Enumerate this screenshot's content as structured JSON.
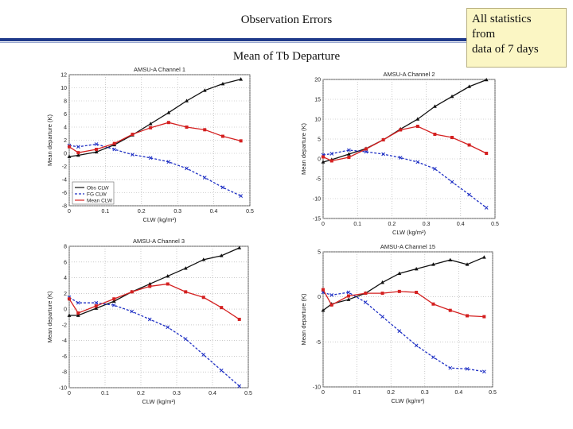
{
  "slide": {
    "title": "Observation Errors",
    "subtitle": "Mean of Tb Departure",
    "note_lines": [
      "All statistics",
      "from",
      "data of 7 days"
    ]
  },
  "chart_data": [
    {
      "type": "line",
      "title": "AMSU-A Channel 1",
      "xlabel": "CLW (kg/m²)",
      "ylabel": "Mean departure (K)",
      "xlim": [
        0,
        0.5
      ],
      "ylim": [
        -8,
        12
      ],
      "xticks": [
        0,
        0.1,
        0.2,
        0.3,
        0.4,
        0.5
      ],
      "xtick_labels": [
        "0",
        "0.1",
        "0.2",
        "0.3",
        "0.4",
        "0.5"
      ],
      "yticks": [
        -8,
        -6,
        -4,
        -2,
        0,
        2,
        4,
        6,
        8,
        10,
        12
      ],
      "legend": [
        "Obs CLW",
        "FG CLW",
        "Mean CLW"
      ],
      "legend_position": "bottom-left",
      "x": [
        0,
        0.025,
        0.075,
        0.125,
        0.175,
        0.225,
        0.275,
        0.325,
        0.375,
        0.425,
        0.475
      ],
      "series": [
        {
          "name": "Obs CLW",
          "color": "#111111",
          "marker": "triangle",
          "values": [
            -0.5,
            -0.3,
            0.2,
            1.3,
            2.8,
            4.5,
            6.2,
            8.0,
            9.6,
            10.6,
            11.3
          ]
        },
        {
          "name": "FG CLW",
          "color": "#1e2fc4",
          "marker": "x",
          "values": [
            1.2,
            1.0,
            1.4,
            0.6,
            -0.2,
            -0.7,
            -1.3,
            -2.3,
            -3.7,
            -5.2,
            -6.5
          ]
        },
        {
          "name": "Mean CLW",
          "color": "#d42020",
          "marker": "square",
          "values": [
            1.0,
            0.1,
            0.6,
            1.5,
            2.9,
            3.9,
            4.7,
            4.0,
            3.6,
            2.6,
            1.9
          ]
        }
      ]
    },
    {
      "type": "line",
      "title": "AMSU-A Channel 2",
      "xlabel": "CLW (kg/m²)",
      "ylabel": "Mean departure (K)",
      "xlim": [
        0,
        0.5
      ],
      "ylim": [
        -15,
        20
      ],
      "xticks": [
        0,
        0.1,
        0.2,
        0.3,
        0.4,
        0.5
      ],
      "xtick_labels": [
        "0",
        "0.1",
        "0.2",
        "0.3",
        "0.4",
        "0.5"
      ],
      "yticks": [
        -15,
        -10,
        -5,
        0,
        5,
        10,
        15,
        20
      ],
      "x": [
        0,
        0.025,
        0.075,
        0.125,
        0.175,
        0.225,
        0.275,
        0.325,
        0.375,
        0.425,
        0.475
      ],
      "series": [
        {
          "name": "Obs CLW",
          "color": "#111111",
          "marker": "triangle",
          "values": [
            -0.8,
            -0.2,
            1.2,
            2.6,
            4.8,
            7.5,
            10.0,
            13.2,
            15.7,
            18.2,
            19.9
          ]
        },
        {
          "name": "FG CLW",
          "color": "#1e2fc4",
          "marker": "x",
          "values": [
            1.0,
            1.3,
            2.2,
            1.8,
            1.2,
            0.3,
            -0.8,
            -2.5,
            -5.8,
            -9.0,
            -12.3
          ]
        },
        {
          "name": "Mean CLW",
          "color": "#d42020",
          "marker": "square",
          "values": [
            0.5,
            -0.5,
            0.4,
            2.5,
            4.8,
            7.3,
            8.2,
            6.2,
            5.4,
            3.5,
            1.4
          ]
        }
      ]
    },
    {
      "type": "line",
      "title": "AMSU-A Channel 3",
      "xlabel": "CLW (kg/m²)",
      "ylabel": "Mean departure (K)",
      "xlim": [
        0,
        0.5
      ],
      "ylim": [
        -10,
        8
      ],
      "xticks": [
        0,
        0.1,
        0.2,
        0.3,
        0.4,
        0.5
      ],
      "xtick_labels": [
        "0",
        "0.1",
        "0.2",
        "0.3",
        "0.4",
        "0.5"
      ],
      "yticks": [
        -10,
        -8,
        -6,
        -4,
        -2,
        0,
        2,
        4,
        6,
        8
      ],
      "x": [
        0,
        0.025,
        0.075,
        0.125,
        0.175,
        0.225,
        0.275,
        0.325,
        0.375,
        0.425,
        0.475
      ],
      "series": [
        {
          "name": "Obs CLW",
          "color": "#111111",
          "marker": "triangle",
          "values": [
            -0.8,
            -0.8,
            0.1,
            1.0,
            2.2,
            3.2,
            4.2,
            5.2,
            6.3,
            6.8,
            7.8
          ]
        },
        {
          "name": "FG CLW",
          "color": "#1e2fc4",
          "marker": "x",
          "values": [
            1.5,
            0.8,
            0.8,
            0.5,
            -0.3,
            -1.3,
            -2.3,
            -3.8,
            -5.8,
            -7.8,
            -9.8
          ]
        },
        {
          "name": "Mean CLW",
          "color": "#d42020",
          "marker": "square",
          "values": [
            1.3,
            -0.5,
            0.4,
            1.3,
            2.2,
            2.9,
            3.2,
            2.2,
            1.5,
            0.2,
            -1.3
          ]
        }
      ]
    },
    {
      "type": "line",
      "title": "AMSU-A Channel 15",
      "xlabel": "CLW (kg/m²)",
      "ylabel": "Mean departure (K)",
      "xlim": [
        0,
        0.5
      ],
      "ylim": [
        -10,
        5
      ],
      "xticks": [
        0,
        0.1,
        0.2,
        0.3,
        0.4,
        0.5
      ],
      "xtick_labels": [
        "0",
        "0.1",
        "0.2",
        "0.3",
        "0.4",
        "0.5"
      ],
      "yticks": [
        -10,
        -5,
        0,
        5
      ],
      "x": [
        0,
        0.025,
        0.075,
        0.125,
        0.175,
        0.225,
        0.275,
        0.325,
        0.375,
        0.425,
        0.475
      ],
      "series": [
        {
          "name": "Obs CLW",
          "color": "#111111",
          "marker": "triangle",
          "values": [
            -1.5,
            -0.8,
            -0.3,
            0.4,
            1.6,
            2.6,
            3.1,
            3.6,
            4.1,
            3.6,
            4.4
          ]
        },
        {
          "name": "FG CLW",
          "color": "#1e2fc4",
          "marker": "x",
          "values": [
            0.5,
            0.2,
            0.5,
            -0.6,
            -2.2,
            -3.8,
            -5.4,
            -6.7,
            -7.9,
            -8.0,
            -8.3
          ]
        },
        {
          "name": "Mean CLW",
          "color": "#d42020",
          "marker": "square",
          "values": [
            0.8,
            -0.9,
            0.1,
            0.4,
            0.4,
            0.6,
            0.5,
            -0.8,
            -1.5,
            -2.1,
            -2.2
          ]
        }
      ]
    }
  ]
}
